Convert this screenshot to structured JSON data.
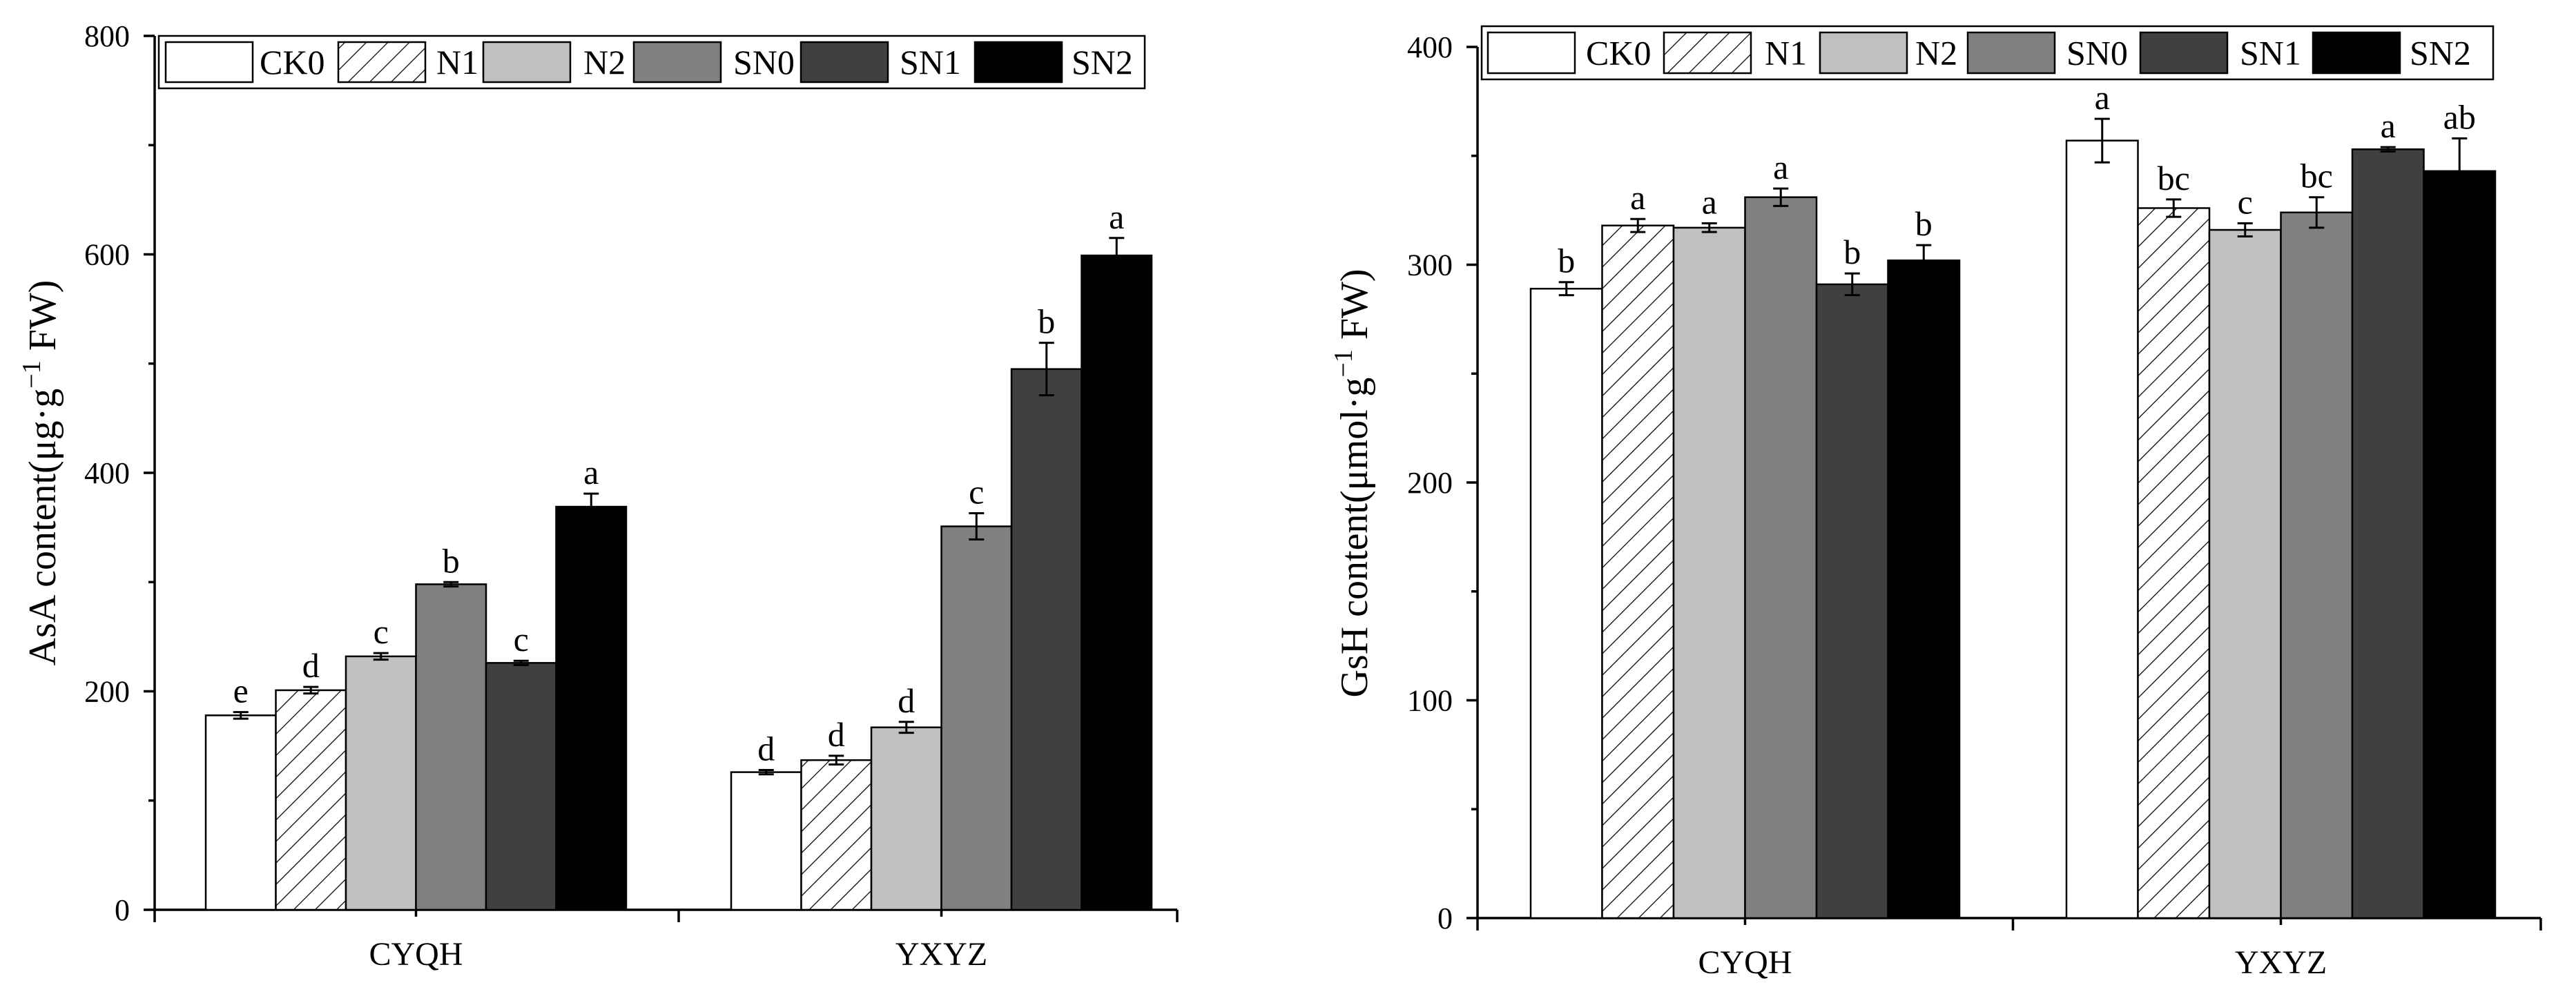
{
  "colors": {
    "CK0": "#ffffff",
    "N1": "hatch",
    "N2": "#c0c0c0",
    "SN0": "#808080",
    "SN1": "#404040",
    "SN2": "#000000"
  },
  "chart_data": [
    {
      "type": "bar",
      "title": "",
      "xlabel": "",
      "ylabel": "AsA content(μg·g⁻¹ FW)",
      "ylabel_parts": {
        "main": "AsA content(μg·g",
        "sup": "−1",
        "tail": " FW)"
      },
      "ylim": [
        0,
        800
      ],
      "yticks": [
        0,
        200,
        400,
        600,
        800
      ],
      "categories": [
        "CYQH",
        "YXYZ"
      ],
      "legend": [
        "CK0",
        "N1",
        "N2",
        "SN0",
        "SN1",
        "SN2"
      ],
      "series": [
        {
          "name": "CK0",
          "values": [
            178,
            126
          ],
          "errors": [
            3,
            2
          ],
          "labels": [
            "e",
            "d"
          ]
        },
        {
          "name": "N1",
          "values": [
            201,
            137
          ],
          "errors": [
            3,
            4
          ],
          "labels": [
            "d",
            "d"
          ]
        },
        {
          "name": "N2",
          "values": [
            232,
            167
          ],
          "errors": [
            3,
            5
          ],
          "labels": [
            "c",
            "d"
          ]
        },
        {
          "name": "SN0",
          "values": [
            298,
            351
          ],
          "errors": [
            2,
            12
          ],
          "labels": [
            "b",
            "c"
          ]
        },
        {
          "name": "SN1",
          "values": [
            226,
            495
          ],
          "errors": [
            2,
            24
          ],
          "labels": [
            "c",
            "b"
          ]
        },
        {
          "name": "SN2",
          "values": [
            369,
            599
          ],
          "errors": [
            12,
            16
          ],
          "labels": [
            "a",
            "a"
          ]
        }
      ]
    },
    {
      "type": "bar",
      "title": "",
      "xlabel": "",
      "ylabel": "GsH content(μmol·g⁻¹ FW)",
      "ylabel_parts": {
        "main": "GsH content(μmol·g",
        "sup": "−1",
        "tail": " FW)"
      },
      "ylim": [
        0,
        400
      ],
      "yticks": [
        0,
        100,
        200,
        300,
        400
      ],
      "categories": [
        "CYQH",
        "YXYZ"
      ],
      "legend": [
        "CK0",
        "N1",
        "N2",
        "SN0",
        "SN1",
        "SN2"
      ],
      "series": [
        {
          "name": "CK0",
          "values": [
            289,
            357
          ],
          "errors": [
            3,
            10
          ],
          "labels": [
            "b",
            "a"
          ]
        },
        {
          "name": "N1",
          "values": [
            318,
            326
          ],
          "errors": [
            3,
            4
          ],
          "labels": [
            "a",
            "bc"
          ]
        },
        {
          "name": "N2",
          "values": [
            317,
            316
          ],
          "errors": [
            2,
            3
          ],
          "labels": [
            "a",
            "c"
          ]
        },
        {
          "name": "SN0",
          "values": [
            331,
            324
          ],
          "errors": [
            4,
            7
          ],
          "labels": [
            "a",
            "bc"
          ]
        },
        {
          "name": "SN1",
          "values": [
            291,
            353
          ],
          "errors": [
            5,
            1
          ],
          "labels": [
            "b",
            "a"
          ]
        },
        {
          "name": "SN2",
          "values": [
            302,
            343
          ],
          "errors": [
            7,
            15
          ],
          "labels": [
            "b",
            "ab"
          ]
        }
      ]
    }
  ]
}
